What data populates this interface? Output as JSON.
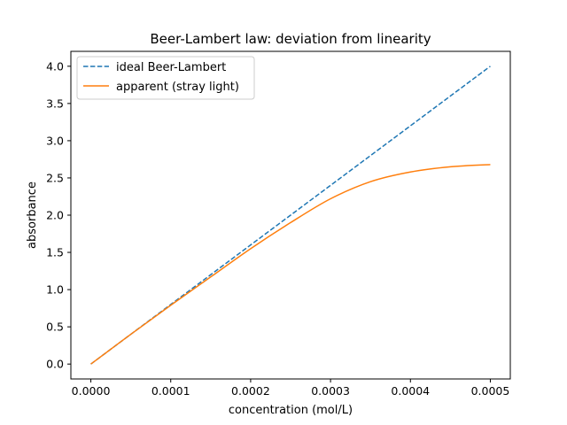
{
  "chart_data": {
    "type": "line",
    "title": "Beer-Lambert law: deviation from linearity",
    "xlabel": "concentration (mol/L)",
    "ylabel": "absorbance",
    "xlim": [
      -2.5e-05,
      0.000525
    ],
    "ylim": [
      -0.2,
      4.2
    ],
    "x_ticks": [
      0.0,
      0.0001,
      0.0002,
      0.0003,
      0.0004,
      0.0005
    ],
    "x_tick_labels": [
      "0.0000",
      "0.0001",
      "0.0002",
      "0.0003",
      "0.0004",
      "0.0005"
    ],
    "y_ticks": [
      0.0,
      0.5,
      1.0,
      1.5,
      2.0,
      2.5,
      3.0,
      3.5,
      4.0
    ],
    "y_tick_labels": [
      "0.0",
      "0.5",
      "1.0",
      "1.5",
      "2.0",
      "2.5",
      "3.0",
      "3.5",
      "4.0"
    ],
    "grid": false,
    "legend_position": "upper-left",
    "x": [
      0.0,
      5e-05,
      0.0001,
      0.00015,
      0.0002,
      0.00025,
      0.0003,
      0.00035,
      0.0004,
      0.00045,
      0.0005
    ],
    "series": [
      {
        "name": "ideal Beer-Lambert",
        "color": "#1f77b4",
        "dash": "dashed",
        "values": [
          0.0,
          0.4,
          0.8,
          1.2,
          1.6,
          2.0,
          2.4,
          2.8,
          3.2,
          3.6,
          4.0
        ]
      },
      {
        "name": "apparent (stray light)",
        "color": "#ff7f0e",
        "dash": "solid",
        "values": [
          0.0,
          0.4,
          0.79,
          1.17,
          1.55,
          1.9,
          2.22,
          2.45,
          2.58,
          2.65,
          2.68
        ]
      }
    ]
  }
}
